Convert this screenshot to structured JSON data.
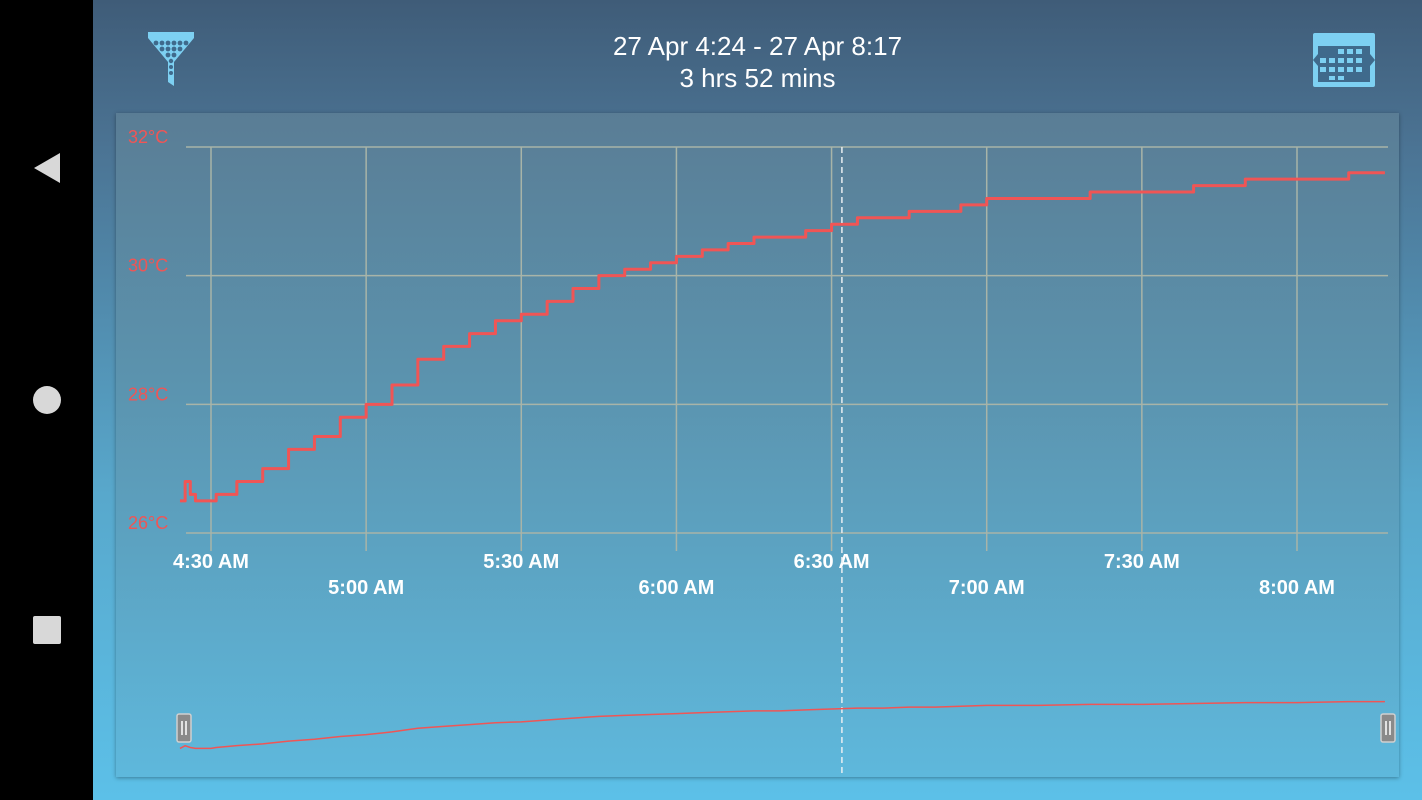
{
  "header": {
    "range": "27 Apr 4:24 - 27 Apr 8:17",
    "duration": "3 hrs 52 mins"
  },
  "icons": {
    "filter": "filter-icon",
    "calendar": "calendar-icon",
    "back": "back-icon",
    "home": "home-icon",
    "recents": "recents-icon"
  },
  "colors": {
    "series": "#f05555",
    "grid": "#a8b4a8",
    "labels": "#ffffff"
  },
  "chart_data": {
    "type": "line",
    "x_unit": "time (27 Apr)",
    "y_unit": "°C",
    "ylim": [
      26,
      32
    ],
    "xlim": [
      "4:24",
      "8:17"
    ],
    "y_ticks": [
      "26°C",
      "28°C",
      "30°C",
      "32°C"
    ],
    "y_tick_values": [
      26,
      28,
      30,
      32
    ],
    "x_ticks": [
      "4:30 AM",
      "5:00 AM",
      "5:30 AM",
      "6:00 AM",
      "6:30 AM",
      "7:00 AM",
      "7:30 AM",
      "8:00 AM"
    ],
    "x_tick_values": [
      "4:30",
      "5:00",
      "5:30",
      "6:00",
      "6:30",
      "7:00",
      "7:30",
      "8:00"
    ],
    "grid": true,
    "cursor_time": "6:32",
    "series": [
      {
        "x": [
          "4:24",
          "4:25",
          "4:26",
          "4:27",
          "4:30",
          "4:31",
          "4:35",
          "4:40",
          "4:45",
          "4:50",
          "4:55",
          "5:00",
          "5:05",
          "5:10",
          "5:15",
          "5:20",
          "5:25",
          "5:30",
          "5:35",
          "5:40",
          "5:45",
          "5:50",
          "5:55",
          "6:00",
          "6:05",
          "6:10",
          "6:15",
          "6:20",
          "6:25",
          "6:30",
          "6:35",
          "6:40",
          "6:45",
          "6:50",
          "6:55",
          "7:00",
          "7:10",
          "7:20",
          "7:30",
          "7:40",
          "7:50",
          "8:00",
          "8:10",
          "8:17"
        ],
        "y": [
          26.5,
          26.8,
          26.6,
          26.5,
          26.5,
          26.6,
          26.8,
          27.0,
          27.3,
          27.5,
          27.8,
          28.0,
          28.3,
          28.7,
          28.9,
          29.1,
          29.3,
          29.4,
          29.6,
          29.8,
          30.0,
          30.1,
          30.2,
          30.3,
          30.4,
          30.5,
          30.6,
          30.6,
          30.7,
          30.8,
          30.9,
          30.9,
          31.0,
          31.0,
          31.1,
          31.2,
          31.2,
          31.3,
          31.3,
          31.4,
          31.5,
          31.5,
          31.6,
          31.6
        ]
      }
    ]
  }
}
